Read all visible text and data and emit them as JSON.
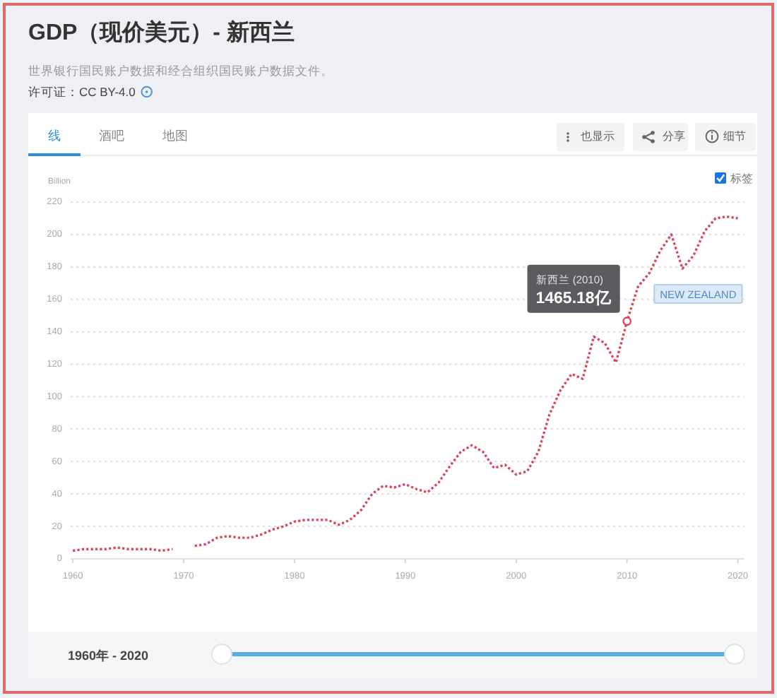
{
  "chart_data": {
    "type": "line",
    "title": "GDP（现价美元）- 新西兰",
    "subtitle": "世界银行国民账户数据和经合组织国民账户数据文件。",
    "ylabel": "Billion",
    "x": [
      1960,
      1961,
      1962,
      1963,
      1964,
      1965,
      1966,
      1967,
      1968,
      1969,
      1970,
      1971,
      1972,
      1973,
      1974,
      1975,
      1976,
      1977,
      1978,
      1979,
      1980,
      1981,
      1982,
      1983,
      1984,
      1985,
      1986,
      1987,
      1988,
      1989,
      1990,
      1991,
      1992,
      1993,
      1994,
      1995,
      1996,
      1997,
      1998,
      1999,
      2000,
      2001,
      2002,
      2003,
      2004,
      2005,
      2006,
      2007,
      2008,
      2009,
      2010,
      2011,
      2012,
      2013,
      2014,
      2015,
      2016,
      2017,
      2018,
      2019,
      2020
    ],
    "series": [
      {
        "name": "NEW ZEALAND",
        "color": "#d9465b",
        "values": [
          5,
          6,
          6,
          6,
          7,
          6,
          6,
          6,
          5,
          6,
          null,
          8,
          9,
          13,
          14,
          13,
          13,
          15,
          18,
          20,
          23,
          24,
          24,
          24,
          21,
          24,
          30,
          40,
          45,
          44,
          46,
          43,
          41,
          47,
          57,
          66,
          70,
          66,
          56,
          58,
          52,
          54,
          66,
          89,
          104,
          114,
          111,
          137,
          133,
          121,
          146.518,
          168,
          176,
          190,
          200,
          179,
          187,
          202,
          210,
          211,
          210
        ]
      }
    ],
    "xlim": [
      1959.8,
      2020.6
    ],
    "xticks": [
      1960,
      1970,
      1980,
      1990,
      2000,
      2010,
      2020
    ],
    "ylim": [
      0,
      220
    ],
    "yticks": [
      0,
      20,
      40,
      60,
      80,
      100,
      120,
      140,
      160,
      180,
      200,
      220
    ],
    "grid": "y",
    "line_style": "dotted",
    "annotations": [
      "许可证：CC BY-4.0",
      "线",
      "酒吧",
      "地图",
      "也显示",
      "分享",
      "细节",
      "标签",
      "1960年 - 2020",
      {
        "text": "新西兰 (2010)\n1465.18亿",
        "x": 2010,
        "y": 146.518
      }
    ]
  }
}
